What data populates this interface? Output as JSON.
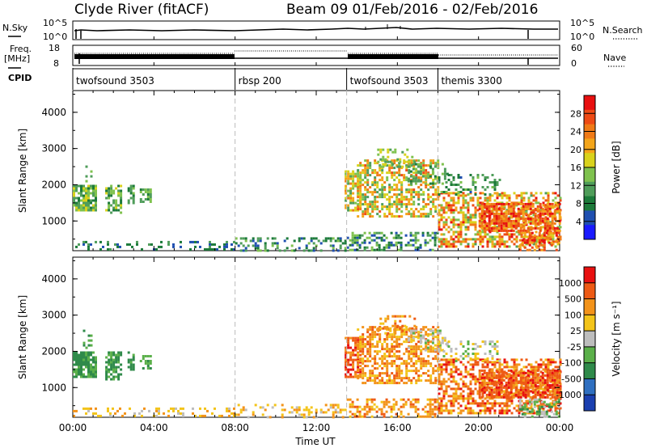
{
  "chart_data": {
    "type": "heatmap",
    "title_left": "Clyde River (fitACF)",
    "title_right": "Beam 09  01/Feb/2016 - 02/Feb/2016",
    "x_ticks": [
      "00:00",
      "04:00",
      "08:00",
      "12:00",
      "16:00",
      "20:00",
      "00:00"
    ],
    "xlabel": "Time UT",
    "xlim_hours": [
      0,
      24
    ],
    "mode_changes_hours": [
      8,
      13.5,
      18
    ],
    "header_panels": {
      "nsky": {
        "left_label": "N.Sky",
        "right_label": "N.Search",
        "left_ticks": [
          "10^5",
          "10^0"
        ],
        "right_ticks": [
          "10^5",
          "10^0"
        ]
      },
      "freq": {
        "left_label_1": "Freq.",
        "left_label_2": "[MHz]",
        "right_label": "Nave",
        "left_ticks": [
          "18",
          "8"
        ],
        "right_ticks": [
          "60",
          "0"
        ]
      },
      "cpid": {
        "label": "CPID",
        "segments": [
          {
            "name": "twofsound 3503",
            "start": 0,
            "end": 8
          },
          {
            "name": "rbsp 200",
            "start": 8,
            "end": 13.5
          },
          {
            "name": "twofsound 3503",
            "start": 13.5,
            "end": 18
          },
          {
            "name": "themis 3300",
            "start": 18,
            "end": 24
          }
        ]
      }
    },
    "panels": [
      {
        "name": "power",
        "ylabel": "Slant Range [km]",
        "y_ticks": [
          "4000",
          "3000",
          "2000",
          "1000"
        ],
        "ylim": [
          180,
          4600
        ],
        "colorbar_label": "Power [dB]",
        "colorbar_ticks": [
          "28",
          "24",
          "20",
          "16",
          "12",
          "8",
          "4"
        ],
        "colorbar_range": [
          0,
          32
        ],
        "colors": [
          "#1a1aff",
          "#1f4fb0",
          "#1c7a3a",
          "#4f9d5a",
          "#7fc24e",
          "#d9d21c",
          "#f3a51a",
          "#f07a16",
          "#ee4a14",
          "#e81010"
        ]
      },
      {
        "name": "velocity",
        "ylabel": "Slant Range [km]",
        "y_ticks": [
          "4000",
          "3000",
          "2000",
          "1000"
        ],
        "ylim": [
          180,
          4600
        ],
        "colorbar_label": "Velocity [m s⁻¹]",
        "colorbar_ticks": [
          "1000",
          "500",
          "100",
          "25",
          "-25",
          "-100",
          "-500",
          "-1000"
        ],
        "colors": [
          "#1a3fb0",
          "#2f6fc0",
          "#2f8a4a",
          "#5bb04a",
          "#bdbdbd",
          "#f3c41a",
          "#f3931a",
          "#ee5a14",
          "#e81010"
        ]
      }
    ],
    "scatter_regions": [
      {
        "t0": 0.0,
        "t1": 1.1,
        "r0": 1300,
        "r1": 2000,
        "density": 0.8,
        "pow": [
          8,
          18
        ],
        "vel": [
          2,
          3
        ]
      },
      {
        "t0": 0.5,
        "t1": 0.9,
        "r0": 2000,
        "r1": 2600,
        "density": 0.25,
        "pow": [
          8,
          14
        ],
        "vel": [
          2,
          3
        ]
      },
      {
        "t0": 1.6,
        "t1": 2.4,
        "r0": 1200,
        "r1": 2000,
        "density": 0.65,
        "pow": [
          8,
          18
        ],
        "vel": [
          2,
          3
        ]
      },
      {
        "t0": 2.7,
        "t1": 3.0,
        "r0": 1500,
        "r1": 2000,
        "density": 0.5,
        "pow": [
          8,
          14
        ],
        "vel": [
          2,
          3
        ]
      },
      {
        "t0": 3.3,
        "t1": 3.8,
        "r0": 1500,
        "r1": 1900,
        "density": 0.6,
        "pow": [
          8,
          16
        ],
        "vel": [
          2,
          3
        ]
      },
      {
        "t0": 0.0,
        "t1": 8.0,
        "r0": 200,
        "r1": 450,
        "density": 0.25,
        "pow": [
          4,
          12
        ],
        "vel": [
          4,
          6
        ]
      },
      {
        "t0": 8.0,
        "t1": 13.5,
        "r0": 200,
        "r1": 550,
        "density": 0.35,
        "pow": [
          4,
          14
        ],
        "vel": [
          4,
          6
        ]
      },
      {
        "t0": 13.4,
        "t1": 14.2,
        "r0": 1300,
        "r1": 2400,
        "density": 0.7,
        "pow": [
          12,
          24
        ],
        "vel": [
          6,
          8
        ]
      },
      {
        "t0": 14.0,
        "t1": 18.0,
        "r0": 1100,
        "r1": 2700,
        "density": 0.55,
        "pow": [
          10,
          26
        ],
        "vel": [
          5,
          7
        ]
      },
      {
        "t0": 15.0,
        "t1": 16.8,
        "r0": 2500,
        "r1": 3000,
        "density": 0.35,
        "pow": [
          10,
          18
        ],
        "vel": [
          5,
          7
        ]
      },
      {
        "t0": 16.5,
        "t1": 18.5,
        "r0": 2000,
        "r1": 2600,
        "density": 0.35,
        "pow": [
          8,
          16
        ],
        "vel": [
          3,
          5
        ]
      },
      {
        "t0": 13.5,
        "t1": 18.0,
        "r0": 200,
        "r1": 700,
        "density": 0.45,
        "pow": [
          4,
          16
        ],
        "vel": [
          5,
          7
        ]
      },
      {
        "t0": 18.0,
        "t1": 24.0,
        "r0": 300,
        "r1": 1800,
        "density": 0.55,
        "pow": [
          12,
          30
        ],
        "vel": [
          5,
          8
        ]
      },
      {
        "t0": 20.0,
        "t1": 24.0,
        "r0": 700,
        "r1": 1500,
        "density": 0.75,
        "pow": [
          20,
          31
        ],
        "vel": [
          6,
          8
        ]
      },
      {
        "t0": 22.0,
        "t1": 24.0,
        "r0": 200,
        "r1": 700,
        "density": 0.5,
        "pow": [
          20,
          31
        ],
        "vel": [
          2,
          4
        ]
      },
      {
        "t0": 18.0,
        "t1": 21.0,
        "r0": 1700,
        "r1": 2300,
        "density": 0.3,
        "pow": [
          6,
          14
        ],
        "vel": [
          3,
          5
        ]
      }
    ]
  }
}
